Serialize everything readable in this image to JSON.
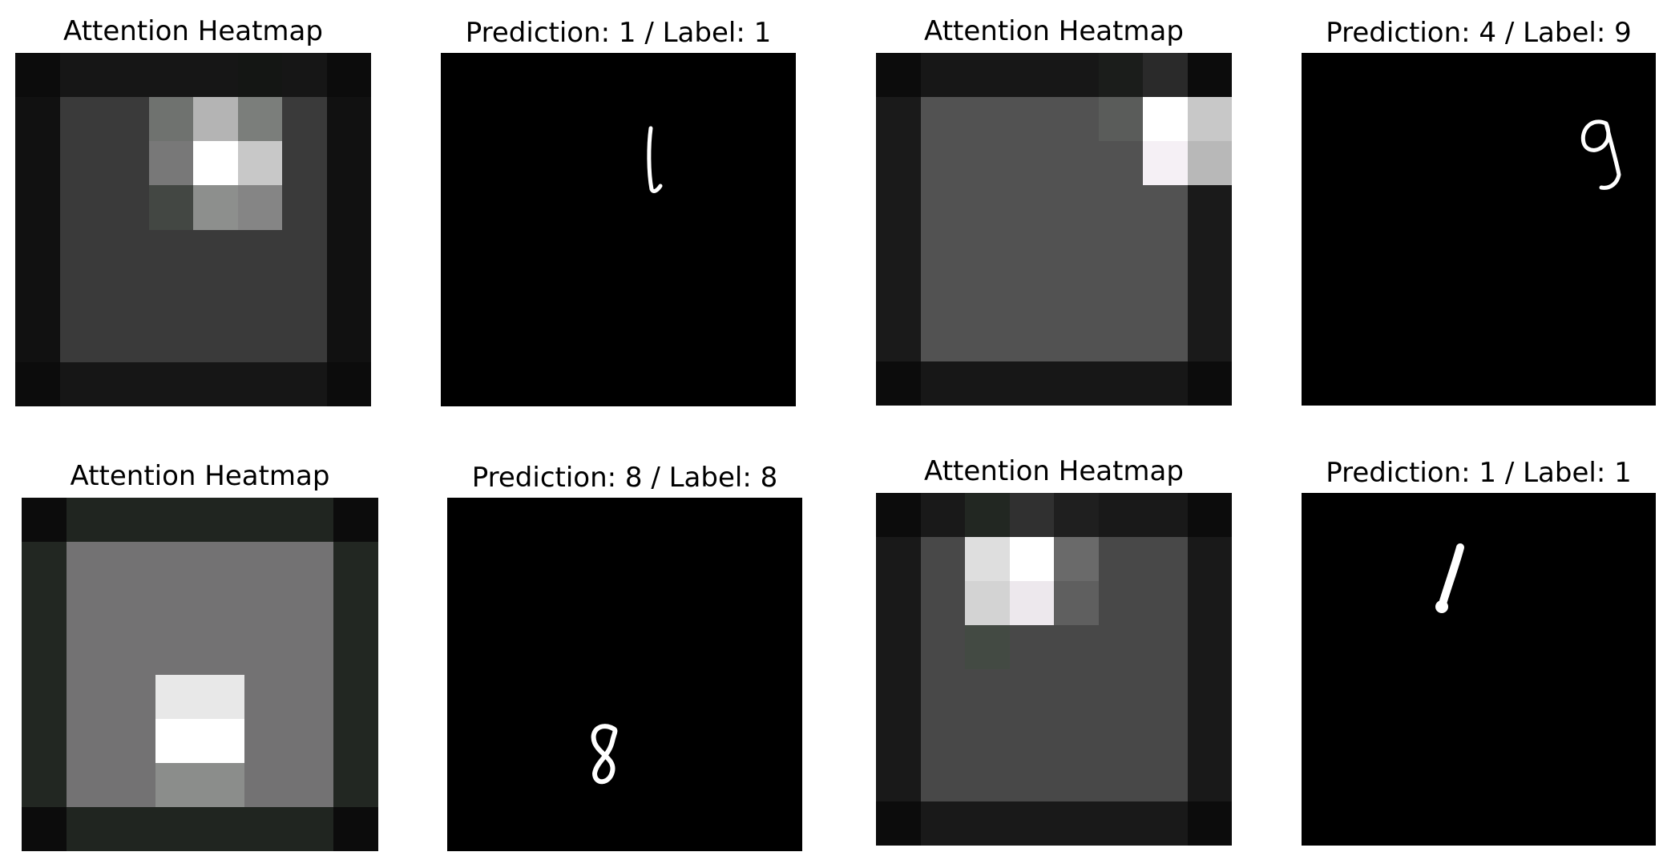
{
  "figure": {
    "rows": [
      {
        "heatmap": {
          "title": "Attention Heatmap",
          "colors": [
            [
              "#0c0c0c",
              "#161616",
              "#161616",
              "#161616",
              "#161616",
              "#141614",
              "#161616",
              "#0c0c0c"
            ],
            [
              "#111111",
              "#3a3a3a",
              "#3a3a3a",
              "#6f726f",
              "#b4b4b4",
              "#7b7e7b",
              "#3a3a3a",
              "#111111"
            ],
            [
              "#111111",
              "#3a3a3a",
              "#3a3a3a",
              "#787878",
              "#ffffff",
              "#c8c8c8",
              "#3a3a3a",
              "#111111"
            ],
            [
              "#111111",
              "#3a3a3a",
              "#3a3a3a",
              "#434743",
              "#8d8f8d",
              "#858585",
              "#3a3a3a",
              "#111111"
            ],
            [
              "#111111",
              "#3a3a3a",
              "#3a3a3a",
              "#3a3a3a",
              "#3a3a3a",
              "#3a3a3a",
              "#3a3a3a",
              "#111111"
            ],
            [
              "#111111",
              "#3a3a3a",
              "#3a3a3a",
              "#3a3a3a",
              "#3a3a3a",
              "#3a3a3a",
              "#3a3a3a",
              "#111111"
            ],
            [
              "#111111",
              "#3a3a3a",
              "#3a3a3a",
              "#3a3a3a",
              "#3a3a3a",
              "#3a3a3a",
              "#3a3a3a",
              "#111111"
            ],
            [
              "#0c0c0c",
              "#161616",
              "#161616",
              "#161616",
              "#161616",
              "#161616",
              "#161616",
              "#0c0c0c"
            ]
          ]
        },
        "digit": {
          "title": "Prediction: 1 / Label: 1",
          "glyph": "one-thin"
        }
      },
      {
        "heatmap": {
          "title": "Attention Heatmap",
          "colors": [
            [
              "#0c0c0c",
              "#171717",
              "#171717",
              "#171717",
              "#171717",
              "#1b1d1b",
              "#2a2a2a",
              "#0c0c0c"
            ],
            [
              "#1a1a1a",
              "#525252",
              "#525252",
              "#525252",
              "#525252",
              "#5a5c5a",
              "#ffffff",
              "#c8c8c8"
            ],
            [
              "#1a1a1a",
              "#525252",
              "#525252",
              "#525252",
              "#525252",
              "#525252",
              "#f5f0f5",
              "#b8b8b8"
            ],
            [
              "#1a1a1a",
              "#525252",
              "#525252",
              "#525252",
              "#525252",
              "#525252",
              "#525252",
              "#1a1a1a"
            ],
            [
              "#1a1a1a",
              "#525252",
              "#525252",
              "#525252",
              "#525252",
              "#525252",
              "#525252",
              "#1a1a1a"
            ],
            [
              "#1a1a1a",
              "#525252",
              "#525252",
              "#525252",
              "#525252",
              "#525252",
              "#525252",
              "#1a1a1a"
            ],
            [
              "#1a1a1a",
              "#525252",
              "#525252",
              "#525252",
              "#525252",
              "#525252",
              "#525252",
              "#1a1a1a"
            ],
            [
              "#0c0c0c",
              "#171717",
              "#171717",
              "#171717",
              "#171717",
              "#171717",
              "#171717",
              "#0c0c0c"
            ]
          ]
        },
        "digit": {
          "title": "Prediction: 4 / Label: 9",
          "glyph": "nine"
        }
      },
      {
        "heatmap": {
          "title": "Attention Heatmap",
          "colors": [
            [
              "#0c0c0c",
              "#202520",
              "#202520",
              "#202520",
              "#202520",
              "#202520",
              "#202520",
              "#0c0c0c"
            ],
            [
              "#222722",
              "#737273",
              "#737273",
              "#737273",
              "#737273",
              "#737273",
              "#737273",
              "#222722"
            ],
            [
              "#222722",
              "#737273",
              "#737273",
              "#737273",
              "#737273",
              "#737273",
              "#737273",
              "#222722"
            ],
            [
              "#222722",
              "#737273",
              "#737273",
              "#737273",
              "#737273",
              "#737273",
              "#737273",
              "#222722"
            ],
            [
              "#222722",
              "#737273",
              "#737273",
              "#e8e8e8",
              "#e8e8e8",
              "#737273",
              "#737273",
              "#222722"
            ],
            [
              "#222722",
              "#737273",
              "#737273",
              "#ffffff",
              "#ffffff",
              "#737273",
              "#737273",
              "#222722"
            ],
            [
              "#222722",
              "#737273",
              "#737273",
              "#8b8d8b",
              "#8b8d8b",
              "#737273",
              "#737273",
              "#222722"
            ],
            [
              "#0c0c0c",
              "#202520",
              "#202520",
              "#202520",
              "#202520",
              "#202520",
              "#202520",
              "#0c0c0c"
            ]
          ]
        },
        "digit": {
          "title": "Prediction: 8 / Label: 8",
          "glyph": "eight"
        }
      },
      {
        "heatmap": {
          "title": "Attention Heatmap",
          "colors": [
            [
              "#0c0c0c",
              "#191919",
              "#222722",
              "#303030",
              "#1f1f1f",
              "#191919",
              "#191919",
              "#0c0c0c"
            ],
            [
              "#191919",
              "#484848",
              "#dedede",
              "#ffffff",
              "#6a6a6a",
              "#484848",
              "#484848",
              "#191919"
            ],
            [
              "#191919",
              "#484848",
              "#d3d3d3",
              "#ede8ed",
              "#5f5f5f",
              "#484848",
              "#484848",
              "#191919"
            ],
            [
              "#191919",
              "#484848",
              "#434a43",
              "#484848",
              "#484848",
              "#484848",
              "#484848",
              "#191919"
            ],
            [
              "#191919",
              "#484848",
              "#484848",
              "#484848",
              "#484848",
              "#484848",
              "#484848",
              "#191919"
            ],
            [
              "#191919",
              "#484848",
              "#484848",
              "#484848",
              "#484848",
              "#484848",
              "#484848",
              "#191919"
            ],
            [
              "#191919",
              "#484848",
              "#484848",
              "#484848",
              "#484848",
              "#484848",
              "#484848",
              "#191919"
            ],
            [
              "#0c0c0c",
              "#191919",
              "#191919",
              "#191919",
              "#191919",
              "#191919",
              "#191919",
              "#0c0c0c"
            ]
          ]
        },
        "digit": {
          "title": "Prediction: 1 / Label: 1",
          "glyph": "one-thick"
        }
      }
    ]
  }
}
